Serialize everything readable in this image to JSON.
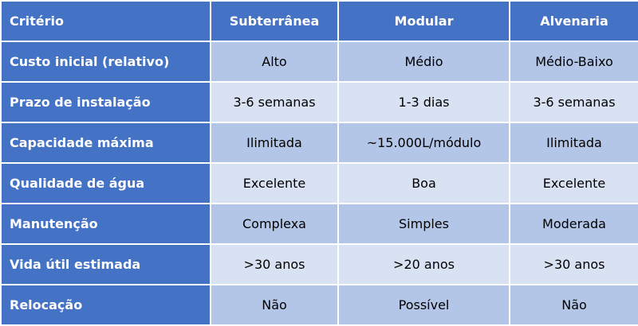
{
  "table": {
    "headers": [
      "Critério",
      "Subterrânea",
      "Modular",
      "Alvenaria"
    ],
    "rows": [
      [
        "Custo inicial (relativo)",
        "Alto",
        "Médio",
        "Médio-Baixo"
      ],
      [
        "Prazo de instalação",
        "3-6 semanas",
        "1-3 dias",
        "3-6 semanas"
      ],
      [
        "Capacidade máxima",
        "Ilimitada",
        "~15.000L/módulo",
        "Ilimitada"
      ],
      [
        "Qualidade de água",
        "Excelente",
        "Boa",
        "Excelente"
      ],
      [
        "Manutenção",
        "Complexa",
        "Simples",
        "Moderada"
      ],
      [
        "Vida útil estimada",
        ">30 anos",
        ">20 anos",
        ">30 anos"
      ],
      [
        "Relocação",
        "Não",
        "Possível",
        "Não"
      ]
    ]
  },
  "colors": {
    "header": "#4472C4",
    "row_odd": "#B4C6E7",
    "row_even": "#D9E2F3"
  }
}
